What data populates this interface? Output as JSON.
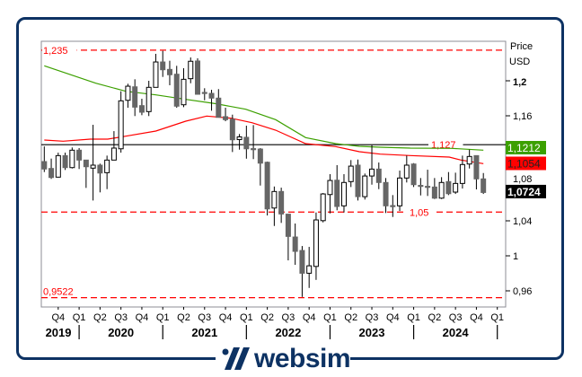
{
  "chart_data": {
    "type": "candlestick",
    "title": "",
    "ylabel": "Price",
    "yunit": "USD",
    "ylim": [
      0.94,
      1.245
    ],
    "grid": false,
    "y_ticks": [
      {
        "value": 1.2,
        "label": "1,2",
        "bold": true
      },
      {
        "value": 1.16,
        "label": "1,16"
      },
      {
        "value": 1.08,
        "label": "1,08"
      },
      {
        "value": 1.04,
        "label": "1,04"
      },
      {
        "value": 1.0,
        "label": "1"
      },
      {
        "value": 0.96,
        "label": "0,96"
      }
    ],
    "x_quarter_labels": [
      "Q4",
      "Q1",
      "Q2",
      "Q3",
      "Q4",
      "Q1",
      "Q2",
      "Q3",
      "Q4",
      "Q1",
      "Q2",
      "Q3",
      "Q4",
      "Q1",
      "Q2",
      "Q3",
      "Q4",
      "Q1",
      "Q2",
      "Q3",
      "Q4",
      "Q1"
    ],
    "x_year_labels": [
      "2019",
      "2020",
      "2021",
      "2022",
      "2023",
      "2024"
    ],
    "candles_ohlc": [
      [
        1.1077,
        1.125,
        1.0957,
        1.0992
      ],
      [
        1.0998,
        1.1111,
        1.0879,
        1.0895
      ],
      [
        1.0899,
        1.1179,
        1.0895,
        1.1145
      ],
      [
        1.1145,
        1.1179,
        1.0981,
        1.1008
      ],
      [
        1.1008,
        1.1238,
        1.0998,
        1.1207
      ],
      [
        1.1207,
        1.1231,
        1.0992,
        1.1094
      ],
      [
        1.1094,
        1.1094,
        1.0776,
        1.1018
      ],
      [
        1.1002,
        1.1497,
        1.0632,
        1.1036
      ],
      [
        1.1036,
        1.1053,
        1.0725,
        1.0946
      ],
      [
        1.095,
        1.1145,
        1.0762,
        1.1094
      ],
      [
        1.1094,
        1.1425,
        1.1094,
        1.1231
      ],
      [
        1.1223,
        1.188,
        1.1179,
        1.1771
      ],
      [
        1.1777,
        1.1966,
        1.1692,
        1.1938
      ],
      [
        1.1931,
        1.2017,
        1.1597,
        1.1699
      ],
      [
        1.1716,
        1.1795,
        1.1607,
        1.1641
      ],
      [
        1.1648,
        1.2,
        1.1597,
        1.1925
      ],
      [
        1.1925,
        1.2308,
        1.1925,
        1.2215
      ],
      [
        1.2215,
        1.2342,
        1.2044,
        1.2126
      ],
      [
        1.213,
        1.2229,
        1.1949,
        1.2069
      ],
      [
        1.2075,
        1.2171,
        1.1692,
        1.171
      ],
      [
        1.1726,
        1.2144,
        1.1699,
        1.2017
      ],
      [
        1.2024,
        1.2267,
        1.1972,
        1.2223
      ],
      [
        1.2226,
        1.2257,
        1.1846,
        1.1846
      ],
      [
        1.1867,
        1.1915,
        1.1777,
        1.186
      ],
      [
        1.1856,
        1.1897,
        1.1658,
        1.1802
      ],
      [
        1.1802,
        1.1905,
        1.1582,
        1.1582
      ],
      [
        1.159,
        1.1692,
        1.1538,
        1.1556
      ],
      [
        1.1562,
        1.1613,
        1.1186,
        1.1326
      ],
      [
        1.1328,
        1.1392,
        1.1213,
        1.1359
      ],
      [
        1.1354,
        1.1487,
        1.111,
        1.1223
      ],
      [
        1.1225,
        1.1494,
        1.1105,
        1.122
      ],
      [
        1.122,
        1.1231,
        1.0803,
        1.1059
      ],
      [
        1.1069,
        1.1077,
        1.0461,
        1.0536
      ],
      [
        1.0546,
        1.0792,
        1.0341,
        1.0735
      ],
      [
        1.0735,
        1.0779,
        1.0376,
        1.0478
      ],
      [
        1.0476,
        1.0478,
        0.9948,
        1.0222
      ],
      [
        1.0215,
        1.0369,
        0.9897,
        1.0051
      ],
      [
        1.0061,
        1.0112,
        0.953,
        0.9801
      ],
      [
        0.9801,
        1.0102,
        0.9633,
        0.9886
      ],
      [
        0.9879,
        1.0495,
        0.9725,
        1.041
      ],
      [
        1.0402,
        1.0718,
        1.0382,
        1.0707
      ],
      [
        1.07,
        1.0933,
        1.0485,
        1.0861
      ],
      [
        1.0864,
        1.1036,
        1.052,
        1.0564
      ],
      [
        1.0571,
        1.0933,
        1.0495,
        1.0838
      ],
      [
        1.0848,
        1.1094,
        1.0786,
        1.1025
      ],
      [
        1.1036,
        1.11,
        1.0632,
        1.0676
      ],
      [
        1.0676,
        1.094,
        1.0643,
        1.0912
      ],
      [
        1.0912,
        1.1264,
        1.0813,
        1.0991
      ],
      [
        1.0991,
        1.1066,
        1.0762,
        1.0838
      ],
      [
        1.0838,
        1.0889,
        1.0489,
        1.0571
      ],
      [
        1.0574,
        1.0694,
        1.0444,
        1.0568
      ],
      [
        1.0571,
        1.0974,
        1.0512,
        1.0889
      ],
      [
        1.0889,
        1.1145,
        1.0838,
        1.1036
      ],
      [
        1.1049,
        1.1059,
        1.0786,
        1.0813
      ],
      [
        1.0805,
        1.0889,
        1.069,
        1.08
      ],
      [
        1.0794,
        1.0984,
        1.0684,
        1.0789
      ],
      [
        1.0786,
        1.0889,
        1.0649,
        1.0659
      ],
      [
        1.0659,
        1.0899,
        1.0649,
        1.0838
      ],
      [
        1.0848,
        1.0957,
        1.0694,
        1.071
      ],
      [
        1.0728,
        1.095,
        1.0707,
        1.0827
      ],
      [
        1.0827,
        1.1145,
        1.0769,
        1.1043
      ],
      [
        1.1049,
        1.1213,
        1.0998,
        1.1135
      ],
      [
        1.1145,
        1.1145,
        1.0759,
        1.0879
      ],
      [
        1.0879,
        1.0946,
        1.0707,
        1.0724
      ]
    ],
    "moving_averages": [
      {
        "color": "#3ca000",
        "last_value_label": "1,1212",
        "points": [
          [
            0,
            1.2171
          ],
          [
            7.4,
            1.1972
          ],
          [
            11.7,
            1.188
          ],
          [
            16,
            1.1839
          ],
          [
            20.3,
            1.1788
          ],
          [
            24.6,
            1.1738
          ],
          [
            28.9,
            1.1675
          ],
          [
            33.2,
            1.1556
          ],
          [
            37.5,
            1.1351
          ],
          [
            41.8,
            1.1282
          ],
          [
            45.2,
            1.1251
          ],
          [
            48.2,
            1.1241
          ],
          [
            52.5,
            1.1231
          ],
          [
            58.5,
            1.1228
          ],
          [
            63,
            1.1207
          ]
        ]
      },
      {
        "color": "#ff0000",
        "last_value_label": "1,1054",
        "points": [
          [
            0,
            1.1323
          ],
          [
            2.7,
            1.131
          ],
          [
            6.6,
            1.1333
          ],
          [
            9.1,
            1.1333
          ],
          [
            11.7,
            1.1367
          ],
          [
            16,
            1.1426
          ],
          [
            20.3,
            1.1538
          ],
          [
            23.3,
            1.1597
          ],
          [
            26.8,
            1.1572
          ],
          [
            29.8,
            1.1521
          ],
          [
            33.2,
            1.1436
          ],
          [
            37.5,
            1.1282
          ],
          [
            41.8,
            1.1248
          ],
          [
            45.2,
            1.119
          ],
          [
            48.2,
            1.1162
          ],
          [
            52.5,
            1.1146
          ],
          [
            58.1,
            1.1128
          ],
          [
            59.8,
            1.1094
          ],
          [
            63,
            1.1053
          ]
        ]
      }
    ],
    "last_price_label": "1,0724",
    "last_price": 1.0724,
    "horizontal_lines": [
      {
        "value": 1.235,
        "label": "1,235",
        "style": "dashed",
        "color": "#ff0000",
        "label_pos": "left"
      },
      {
        "value": 1.127,
        "label": "1,127",
        "style": "solid",
        "color": "#000000",
        "label_pos": "right"
      },
      {
        "value": 1.05,
        "label": "1,05",
        "style": "dashed",
        "color": "#ff0000",
        "label_pos": "center-right"
      },
      {
        "value": 0.9522,
        "label": "0,9522",
        "style": "dashed",
        "color": "#ff0000",
        "label_pos": "left"
      }
    ],
    "colors": {
      "bear": "#666666",
      "bull": "#ffffff",
      "wick": "#000000",
      "frame": "#0d3263",
      "last_price_badge": "#000000"
    }
  },
  "logo": {
    "text": "websim"
  }
}
